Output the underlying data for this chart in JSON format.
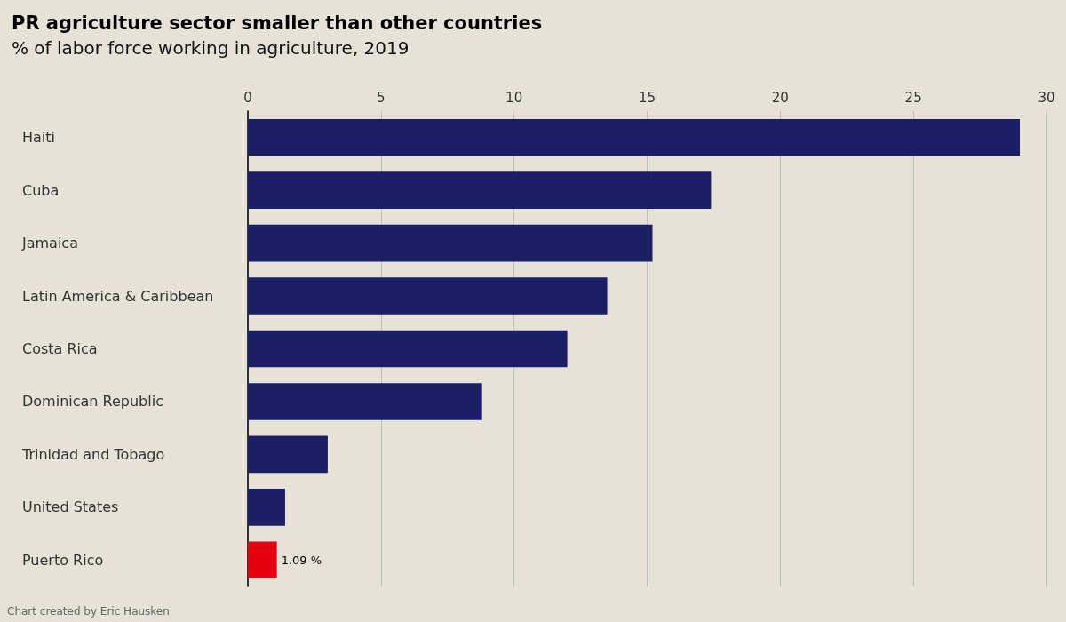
{
  "chart_data": {
    "type": "bar",
    "orientation": "horizontal",
    "title": "PR agriculture sector smaller than other countries",
    "subtitle": "% of labor force working in agriculture, 2019",
    "categories": [
      "Haiti",
      "Cuba",
      "Jamaica",
      "Latin America & Caribbean",
      "Costa Rica",
      "Dominican Republic",
      "Trinidad and Tobago",
      "United States",
      "Puerto Rico"
    ],
    "values": [
      29.0,
      17.4,
      15.2,
      13.5,
      12.0,
      8.8,
      3.0,
      1.4,
      1.09
    ],
    "colors": [
      "#1b1f66",
      "#1b1f66",
      "#1b1f66",
      "#1b1f66",
      "#1b1f66",
      "#1b1f66",
      "#1b1f66",
      "#1b1f66",
      "#e3000f"
    ],
    "value_labels": [
      null,
      null,
      null,
      null,
      null,
      null,
      null,
      null,
      "1.09 %"
    ],
    "xlim": [
      0,
      30
    ],
    "xticks": [
      0,
      5,
      10,
      15,
      20,
      25,
      30
    ],
    "grid": "x",
    "annotations": [
      "Chart created by Eric Hausken"
    ]
  }
}
